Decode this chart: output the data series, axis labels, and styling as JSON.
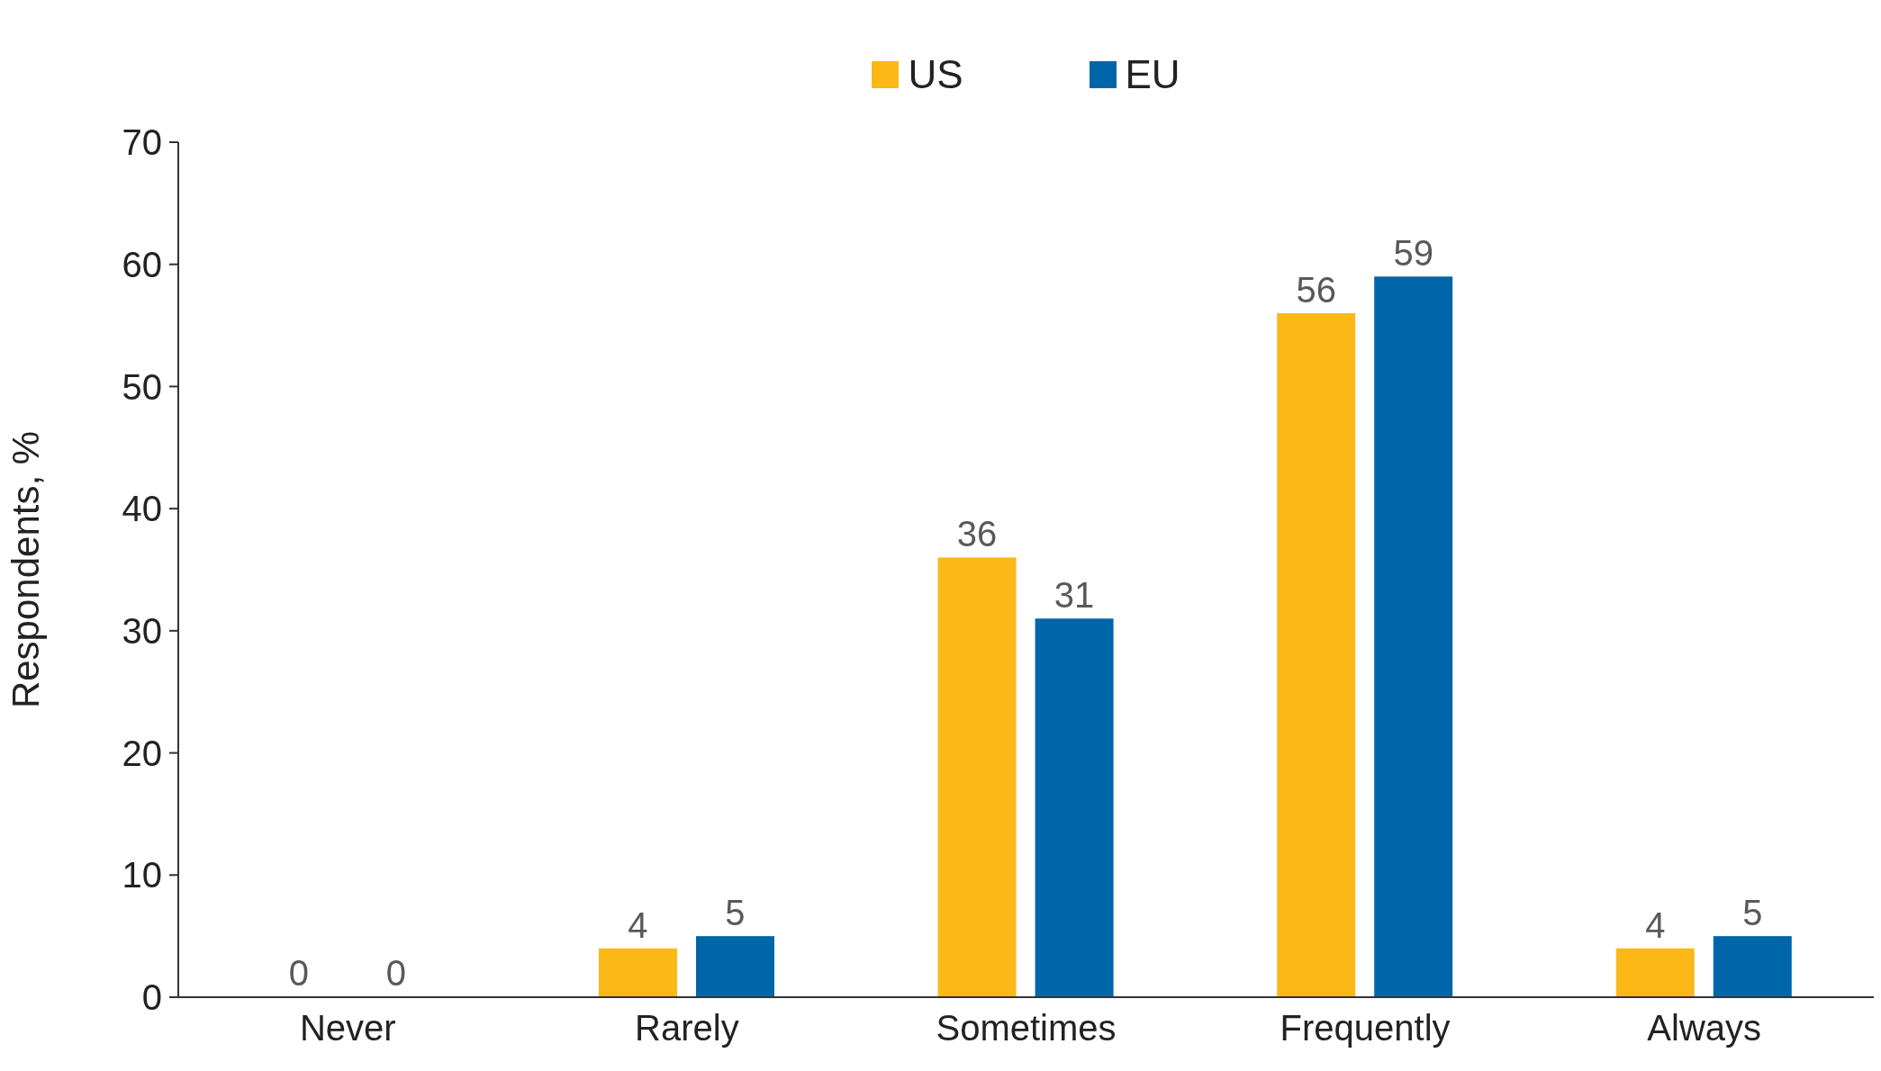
{
  "chart_data": {
    "type": "bar",
    "ylabel": "Respondents, %",
    "categories": [
      "Never",
      "Rarely",
      "Sometimes",
      "Frequently",
      "Always"
    ],
    "series": [
      {
        "name": "US",
        "color": "#fbb817",
        "values": [
          0,
          4,
          36,
          56,
          4
        ]
      },
      {
        "name": "EU",
        "color": "#0066aa",
        "values": [
          0,
          5,
          31,
          59,
          5
        ]
      }
    ],
    "ylim": [
      0,
      70
    ],
    "yticks": [
      0,
      10,
      20,
      30,
      40,
      50,
      60,
      70
    ],
    "data_labels": true,
    "legend": "top",
    "grid": false
  }
}
